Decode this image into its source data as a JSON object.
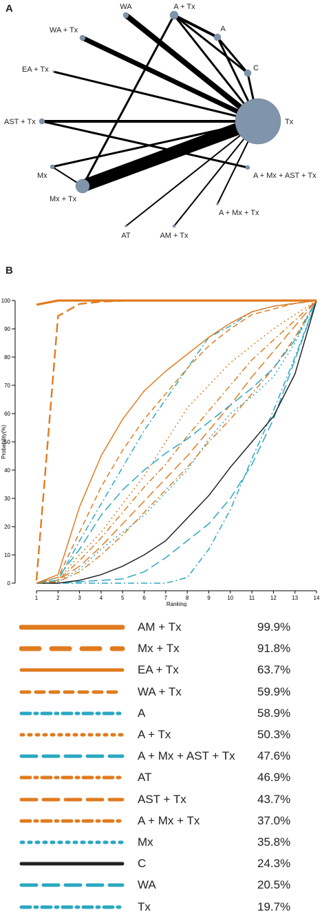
{
  "panels": {
    "a_letter": "A",
    "b_letter": "B"
  },
  "chart_data": [
    {
      "type": "network",
      "nodes": [
        {
          "id": "WA",
          "label": "WA",
          "size": 4
        },
        {
          "id": "A+Tx",
          "label": "A + Tx",
          "size": 6
        },
        {
          "id": "A",
          "label": "A",
          "size": 5
        },
        {
          "id": "WA+Tx",
          "label": "WA + Tx",
          "size": 4
        },
        {
          "id": "EA+Tx",
          "label": "EA + Tx",
          "size": 1.5
        },
        {
          "id": "C",
          "label": "C",
          "size": 5
        },
        {
          "id": "Tx",
          "label": "Tx",
          "size": 33
        },
        {
          "id": "AST+Tx",
          "label": "AST + Tx",
          "size": 4
        },
        {
          "id": "Mx",
          "label": "Mx",
          "size": 3
        },
        {
          "id": "A+Mx+AST+Tx",
          "label": "A + Mx + AST + Tx",
          "size": 3
        },
        {
          "id": "A+Mx+Tx",
          "label": "A + Mx + Tx",
          "size": 1.5
        },
        {
          "id": "Mx+Tx",
          "label": "Mx + Tx",
          "size": 10
        },
        {
          "id": "AT",
          "label": "AT",
          "size": 1.5
        },
        {
          "id": "AM+Tx",
          "label": "AM + Tx",
          "size": 2
        }
      ],
      "edges": [
        {
          "from": "WA",
          "to": "Tx",
          "weight": 8
        },
        {
          "from": "WA+Tx",
          "to": "Tx",
          "weight": 7
        },
        {
          "from": "EA+Tx",
          "to": "Tx",
          "weight": 3
        },
        {
          "from": "AST+Tx",
          "to": "Tx",
          "weight": 4
        },
        {
          "from": "Mx+Tx",
          "to": "Tx",
          "weight": 18
        },
        {
          "from": "Mx",
          "to": "Tx",
          "weight": 3
        },
        {
          "from": "A+Tx",
          "to": "Tx",
          "weight": 3
        },
        {
          "from": "A",
          "to": "Tx",
          "weight": 3
        },
        {
          "from": "C",
          "to": "Tx",
          "weight": 3
        },
        {
          "from": "A+Tx",
          "to": "A",
          "weight": 4
        },
        {
          "from": "A+Tx",
          "to": "C",
          "weight": 3
        },
        {
          "from": "A",
          "to": "C",
          "weight": 3
        },
        {
          "from": "A+Tx",
          "to": "Mx+Tx",
          "weight": 3
        },
        {
          "from": "AST+Tx",
          "to": "A+Mx+AST+Tx",
          "weight": 3
        },
        {
          "from": "Mx",
          "to": "Mx+Tx",
          "weight": 2
        },
        {
          "from": "AT",
          "to": "Tx",
          "weight": 2
        },
        {
          "from": "AM+Tx",
          "to": "Tx",
          "weight": 2
        },
        {
          "from": "A+Mx+Tx",
          "to": "Tx",
          "weight": 2
        }
      ]
    },
    {
      "type": "line",
      "xlabel": "Ranking",
      "ylabel": "Probability(%)",
      "xlim": [
        1,
        14
      ],
      "ylim": [
        0,
        100
      ],
      "x": [
        1,
        2,
        3,
        4,
        5,
        6,
        7,
        8,
        9,
        10,
        11,
        12,
        13,
        14
      ],
      "yticks": [
        0,
        10,
        20,
        30,
        40,
        50,
        60,
        70,
        80,
        90,
        100
      ],
      "series": [
        {
          "name": "AM + Tx",
          "sucra": "99.9%",
          "color": "#e07b1f",
          "style": "solid",
          "width": 3.2,
          "values": [
            98.5,
            100,
            100,
            100,
            100,
            100,
            100,
            100,
            100,
            100,
            100,
            100,
            100,
            100
          ]
        },
        {
          "name": "Mx + Tx",
          "sucra": "91.8%",
          "color": "#e07b1f",
          "style": "longdash",
          "width": 2.4,
          "values": [
            1,
            94.5,
            98.8,
            99.6,
            99.9,
            100,
            100,
            100,
            100,
            100,
            100,
            100,
            100,
            100
          ]
        },
        {
          "name": "EA + Tx",
          "sucra": "63.7%",
          "color": "#e07b1f",
          "style": "solid",
          "width": 1.5,
          "values": [
            0,
            3,
            27,
            45,
            58,
            68,
            75,
            81,
            87,
            92,
            96,
            98,
            99,
            100
          ]
        },
        {
          "name": "WA + Tx",
          "sucra": "59.9%",
          "color": "#e07b1f",
          "style": "dash",
          "width": 1.5,
          "values": [
            0,
            2,
            18,
            34,
            47,
            58,
            67,
            76,
            84,
            90,
            95,
            97,
            99,
            100
          ]
        },
        {
          "name": "A",
          "sucra": "58.9%",
          "color": "#2aa7c2",
          "style": "dashdot",
          "width": 1.5,
          "values": [
            0,
            1,
            15,
            28,
            41,
            54,
            65,
            76,
            87,
            91,
            96,
            98,
            99,
            100
          ]
        },
        {
          "name": "A + Tx",
          "sucra": "50.3%",
          "color": "#e07b1f",
          "style": "dot",
          "width": 1.5,
          "values": [
            0,
            1,
            10,
            18,
            28,
            38,
            50,
            62,
            70,
            78,
            84,
            90,
            95,
            100
          ]
        },
        {
          "name": "A + Mx + AST + Tx",
          "sucra": "47.6%",
          "color": "#2aa7c2",
          "style": "longdash",
          "width": 1.5,
          "values": [
            0,
            2,
            12,
            24,
            33,
            40,
            46,
            51,
            57,
            63,
            69,
            76,
            86,
            100
          ]
        },
        {
          "name": "AT",
          "sucra": "46.9%",
          "color": "#e07b1f",
          "style": "dashdot",
          "width": 1.5,
          "values": [
            0,
            1,
            8,
            16,
            25,
            34,
            42,
            52,
            61,
            70,
            79,
            86,
            93,
            100
          ]
        },
        {
          "name": "AST + Tx",
          "sucra": "43.7%",
          "color": "#e07b1f",
          "style": "longdash",
          "width": 1.5,
          "values": [
            0,
            1,
            6,
            13,
            21,
            29,
            37,
            45,
            54,
            63,
            73,
            82,
            91,
            100
          ]
        },
        {
          "name": "A + Mx + Tx",
          "sucra": "37.0%",
          "color": "#e07b1f",
          "style": "dashdot",
          "width": 1.5,
          "values": [
            0,
            0.5,
            4,
            10,
            17,
            25,
            33,
            41,
            50,
            58,
            67,
            76,
            87,
            100
          ]
        },
        {
          "name": "Mx",
          "sucra": "35.8%",
          "color": "#2aa7c2",
          "style": "dot",
          "width": 1.5,
          "values": [
            0,
            0.5,
            5,
            12,
            18,
            24,
            32,
            40,
            51,
            60,
            66,
            73,
            85,
            100
          ]
        },
        {
          "name": "C",
          "sucra": "24.3%",
          "color": "#222222",
          "style": "solid",
          "width": 1.5,
          "values": [
            0,
            0,
            1,
            3,
            6,
            10,
            15,
            23,
            31,
            41,
            50,
            59,
            74,
            100
          ]
        },
        {
          "name": "WA",
          "sucra": "20.5%",
          "color": "#2aa7c2",
          "style": "longdash",
          "width": 1.5,
          "values": [
            0,
            0,
            0.5,
            1,
            1.5,
            4,
            9,
            15,
            21,
            30,
            42,
            58,
            79,
            100
          ]
        },
        {
          "name": "Tx",
          "sucra": "19.7%",
          "color": "#2aa7c2",
          "style": "dashdot",
          "width": 1.5,
          "values": [
            0,
            0,
            0,
            0,
            0,
            0,
            0,
            2,
            12,
            26,
            44,
            61,
            80,
            100
          ]
        }
      ]
    }
  ]
}
